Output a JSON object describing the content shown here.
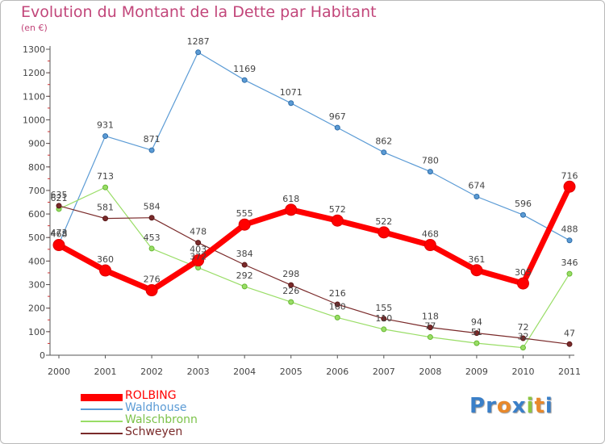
{
  "header": {
    "title": "Evolution du Montant de la Dette par Habitant",
    "subtitle": "(en €)"
  },
  "logo": {
    "text": "Proxiti",
    "letters": [
      {
        "ch": "P",
        "color": "#3a7fc8"
      },
      {
        "ch": "r",
        "color": "#3a7fc8"
      },
      {
        "ch": "o",
        "color": "#e8882a"
      },
      {
        "ch": "x",
        "color": "#3a7fc8"
      },
      {
        "ch": "i",
        "color": "#8cc63f"
      },
      {
        "ch": "t",
        "color": "#e8882a"
      },
      {
        "ch": "i",
        "color": "#3a7fc8"
      }
    ]
  },
  "chart_data": {
    "type": "line",
    "title": "Evolution du Montant de la Dette par Habitant",
    "subtitle": "(en €)",
    "xlabel": "",
    "ylabel": "",
    "x": [
      "2000",
      "2001",
      "2002",
      "2003",
      "2004",
      "2005",
      "2006",
      "2007",
      "2008",
      "2009",
      "2010",
      "2011"
    ],
    "ylim": [
      0,
      1300
    ],
    "yticks": [
      0,
      100,
      200,
      300,
      400,
      500,
      600,
      700,
      800,
      900,
      1000,
      1100,
      1200,
      1300
    ],
    "grid": false,
    "legend_position": "bottom-left",
    "series": [
      {
        "name": "ROLBING",
        "color": "#ff0000",
        "values": [
          468,
          360,
          276,
          403,
          555,
          618,
          572,
          522,
          468,
          361,
          305,
          716
        ]
      },
      {
        "name": "Waldhouse",
        "color": "#5b9bd5",
        "values": [
          473,
          931,
          871,
          1287,
          1169,
          1071,
          967,
          862,
          780,
          674,
          596,
          488
        ]
      },
      {
        "name": "Walschbronn",
        "color": "#99dd66",
        "values": [
          621,
          713,
          453,
          372,
          292,
          226,
          160,
          110,
          77,
          51,
          32,
          346
        ]
      },
      {
        "name": "Schweyen",
        "color": "#7a2a2a",
        "values": [
          635,
          581,
          584,
          478,
          384,
          298,
          216,
          155,
          118,
          94,
          72,
          47
        ]
      }
    ]
  }
}
